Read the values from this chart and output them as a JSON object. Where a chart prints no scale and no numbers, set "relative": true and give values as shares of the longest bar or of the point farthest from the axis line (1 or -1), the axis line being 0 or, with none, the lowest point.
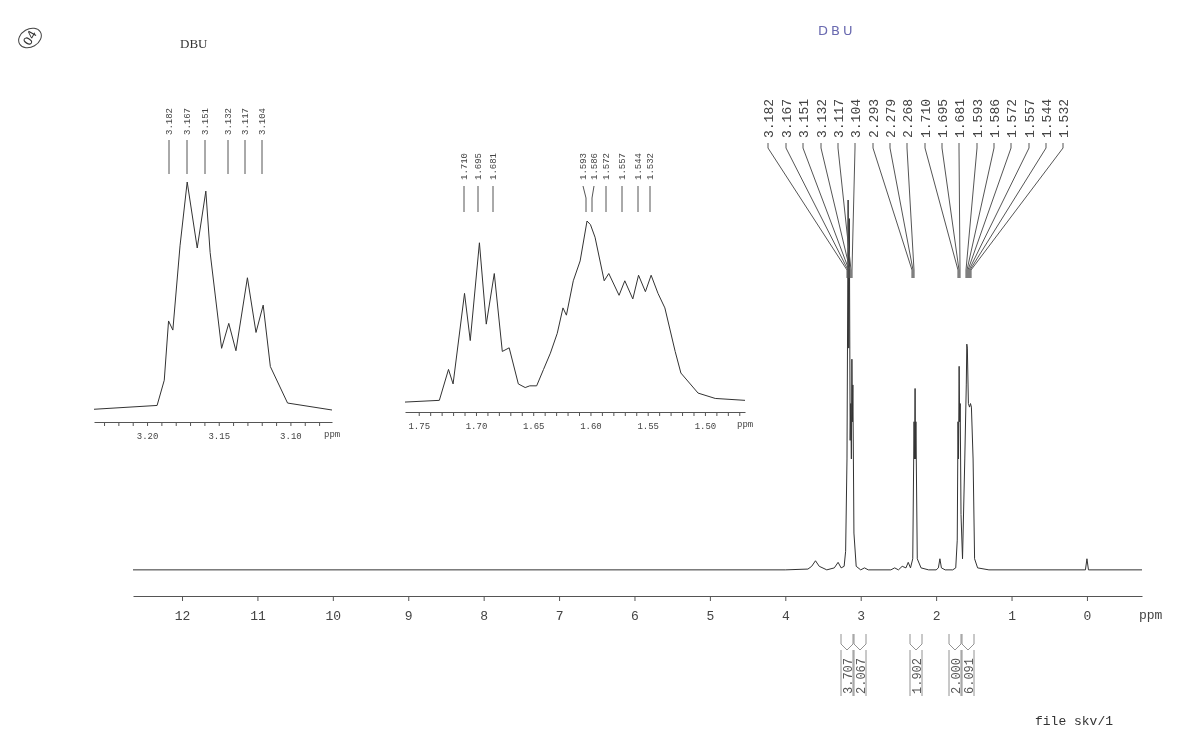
{
  "chart_data": [
    {
      "type": "line",
      "title": "DBU",
      "xlabel": "ppm",
      "relative": true,
      "color": "#333333",
      "xlim": [
        12.65,
        -0.73
      ],
      "xticks": [
        12,
        11,
        10,
        9,
        8,
        7,
        6,
        5,
        4,
        3,
        2,
        1,
        0
      ],
      "x": [
        12.65,
        4.0,
        3.7,
        3.65,
        3.6,
        3.55,
        3.45,
        3.35,
        3.3,
        3.26,
        3.22,
        3.2,
        3.182,
        3.167,
        3.159,
        3.151,
        3.14,
        3.132,
        3.124,
        3.117,
        3.11,
        3.104,
        3.09,
        3.06,
        3.0,
        2.95,
        2.9,
        2.6,
        2.55,
        2.5,
        2.45,
        2.4,
        2.37,
        2.34,
        2.31,
        2.293,
        2.286,
        2.279,
        2.273,
        2.268,
        2.25,
        2.2,
        2.1,
        2.0,
        1.97,
        1.95,
        1.93,
        1.88,
        1.78,
        1.74,
        1.72,
        1.71,
        1.703,
        1.695,
        1.688,
        1.681,
        1.67,
        1.65,
        1.62,
        1.6,
        1.593,
        1.586,
        1.572,
        1.557,
        1.544,
        1.532,
        1.51,
        1.49,
        1.45,
        1.3,
        0.02,
        0.0,
        -0.02,
        -0.73
      ],
      "values": [
        0.066,
        0.066,
        0.068,
        0.075,
        0.089,
        0.075,
        0.066,
        0.071,
        0.085,
        0.071,
        0.075,
        0.113,
        0.346,
        1,
        0.626,
        0.953,
        0.393,
        0.486,
        0.346,
        0.598,
        0.44,
        0.533,
        0.159,
        0.075,
        0.066,
        0.071,
        0.066,
        0.066,
        0.071,
        0.066,
        0.075,
        0.071,
        0.085,
        0.071,
        0.094,
        0.44,
        0.346,
        0.524,
        0.346,
        0.44,
        0.094,
        0.071,
        0.066,
        0.066,
        0.071,
        0.094,
        0.071,
        0.066,
        0.066,
        0.071,
        0.141,
        0.44,
        0.346,
        0.58,
        0.44,
        0.486,
        0.206,
        0.094,
        0.346,
        0.533,
        0.636,
        0.626,
        0.486,
        0.477,
        0.486,
        0.477,
        0.346,
        0.094,
        0.071,
        0.066,
        0.066,
        0.094,
        0.066,
        0.066
      ],
      "annotations": [
        "04",
        "DBU",
        "file skv/1",
        "3.707",
        "2.067",
        "1.902",
        "2.000",
        "6.091",
        "3.182",
        "3.167",
        "3.151",
        "3.132",
        "3.117",
        "3.104",
        "2.293",
        "2.279",
        "2.268",
        "1.710",
        "1.695",
        "1.681",
        "1.593",
        "1.586",
        "1.572",
        "1.557",
        "1.544",
        "1.532"
      ]
    },
    {
      "type": "line",
      "xlabel": "ppm",
      "relative": true,
      "color": "#333333",
      "xlim": [
        3.237,
        3.071
      ],
      "xticks": [
        {
          "value": 3.23,
          "label": null
        },
        {
          "value": 3.22,
          "label": null
        },
        {
          "value": 3.21,
          "label": null
        },
        {
          "value": 3.2,
          "label": "3.20"
        },
        {
          "value": 3.19,
          "label": null
        },
        {
          "value": 3.18,
          "label": null
        },
        {
          "value": 3.17,
          "label": null
        },
        {
          "value": 3.16,
          "label": null
        },
        3.15,
        {
          "value": 3.14,
          "label": null
        },
        {
          "value": 3.13,
          "label": null
        },
        {
          "value": 3.12,
          "label": null
        },
        {
          "value": 3.11,
          "label": null
        },
        {
          "value": 3.1,
          "label": "3.10"
        },
        {
          "value": 3.09,
          "label": null
        },
        {
          "value": 3.08,
          "label": null
        }
      ],
      "x": [
        3.237,
        3.193,
        3.188,
        3.185,
        3.182,
        3.177,
        3.172,
        3.165,
        3.159,
        3.156,
        3.148,
        3.143,
        3.138,
        3.13,
        3.124,
        3.119,
        3.114,
        3.102,
        3.071
      ],
      "values": [
        0.053,
        0.069,
        0.174,
        0.421,
        0.383,
        0.734,
        1,
        0.725,
        0.962,
        0.706,
        0.307,
        0.411,
        0.297,
        0.601,
        0.373,
        0.487,
        0.231,
        0.079,
        0.05
      ],
      "annotations": [
        "3.182",
        "3.167",
        "3.151",
        "3.132",
        "3.117",
        "3.104"
      ]
    },
    {
      "type": "line",
      "xlabel": "ppm",
      "relative": true,
      "color": "#333333",
      "xlim": [
        1.762,
        1.465
      ],
      "xticks": [
        1.75,
        {
          "value": 1.74,
          "label": null
        },
        {
          "value": 1.73,
          "label": null
        },
        {
          "value": 1.72,
          "label": null
        },
        {
          "value": 1.71,
          "label": null
        },
        {
          "value": 1.7,
          "label": "1.70"
        },
        {
          "value": 1.69,
          "label": null
        },
        {
          "value": 1.68,
          "label": null
        },
        {
          "value": 1.67,
          "label": null
        },
        {
          "value": 1.66,
          "label": null
        },
        1.65,
        {
          "value": 1.64,
          "label": null
        },
        {
          "value": 1.63,
          "label": null
        },
        {
          "value": 1.62,
          "label": null
        },
        {
          "value": 1.61,
          "label": null
        },
        {
          "value": 1.6,
          "label": "1.60"
        },
        {
          "value": 1.59,
          "label": null
        },
        {
          "value": 1.58,
          "label": null
        },
        {
          "value": 1.57,
          "label": null
        },
        {
          "value": 1.56,
          "label": null
        },
        1.55,
        {
          "value": 1.54,
          "label": null
        },
        {
          "value": 1.53,
          "label": null
        },
        {
          "value": 1.52,
          "label": null
        },
        {
          "value": 1.51,
          "label": null
        },
        {
          "value": 1.5,
          "label": "1.50"
        },
        {
          "value": 1.49,
          "label": null
        },
        {
          "value": 1.48,
          "label": null
        },
        {
          "value": 1.47,
          "label": null
        }
      ],
      "x": [
        1.762,
        1.732,
        1.724,
        1.72,
        1.71,
        1.705,
        1.697,
        1.691,
        1.684,
        1.677,
        1.671,
        1.663,
        1.657,
        1.653,
        1.647,
        1.641,
        1.635,
        1.629,
        1.624,
        1.621,
        1.615,
        1.609,
        1.603,
        1.6,
        1.596,
        1.588,
        1.584,
        1.575,
        1.57,
        1.563,
        1.558,
        1.552,
        1.547,
        1.541,
        1.535,
        1.526,
        1.521,
        1.506,
        1.491,
        1.465
      ],
      "values": [
        0.052,
        0.061,
        0.223,
        0.147,
        0.621,
        0.374,
        0.886,
        0.46,
        0.725,
        0.317,
        0.336,
        0.147,
        0.128,
        0.137,
        0.137,
        0.223,
        0.308,
        0.412,
        0.545,
        0.507,
        0.687,
        0.791,
        1,
        0.981,
        0.915,
        0.687,
        0.725,
        0.611,
        0.687,
        0.592,
        0.716,
        0.63,
        0.716,
        0.621,
        0.545,
        0.317,
        0.204,
        0.099,
        0.071,
        0.061
      ],
      "annotations": [
        "1.710",
        "1.695",
        "1.681",
        "1.593",
        "1.586",
        "1.572",
        "1.557",
        "1.544",
        "1.532"
      ]
    }
  ]
}
